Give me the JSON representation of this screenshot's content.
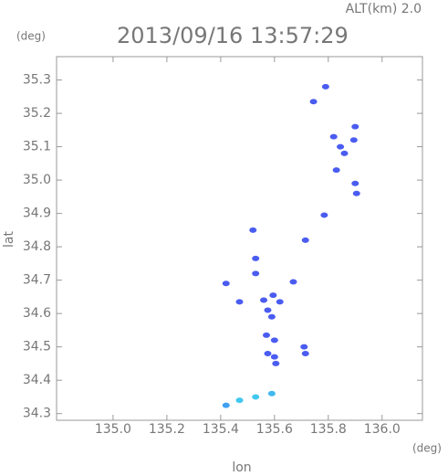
{
  "chart_data": {
    "type": "scatter",
    "title": "2013/09/16 13:57:29",
    "subtitle": "ALT(km) 2.0",
    "y_unit": "(deg)",
    "x_unit": "(deg)",
    "xlabel": "lon",
    "ylabel": "lat",
    "xlim": [
      134.79,
      136.15
    ],
    "ylim": [
      34.28,
      35.37
    ],
    "xticks": [
      {
        "value": 135,
        "label": "135.0"
      },
      135.2,
      135.4,
      135.6,
      135.8,
      {
        "value": 136,
        "label": "136.0"
      }
    ],
    "yticks": [
      34.3,
      34.4,
      34.5,
      34.6,
      34.7,
      34.8,
      34.9,
      {
        "value": 35,
        "label": "35.0"
      },
      35.1,
      35.2,
      35.3
    ],
    "x": [
      135.79,
      135.745,
      135.82,
      135.845,
      135.9,
      135.895,
      135.86,
      135.83,
      135.9,
      135.905,
      135.785,
      135.715,
      135.52,
      135.53,
      135.42,
      135.53,
      135.67,
      135.47,
      135.56,
      135.595,
      135.62,
      135.575,
      135.59,
      135.57,
      135.6,
      135.575,
      135.605,
      135.715,
      135.71,
      135.6,
      135.42,
      135.47,
      135.53,
      135.59
    ],
    "y": [
      35.28,
      35.235,
      35.13,
      35.1,
      35.16,
      35.12,
      35.08,
      35.03,
      34.99,
      34.96,
      34.895,
      34.82,
      34.85,
      34.765,
      34.69,
      34.72,
      34.695,
      34.635,
      34.64,
      34.655,
      34.635,
      34.61,
      34.59,
      34.535,
      34.52,
      34.48,
      34.45,
      34.48,
      34.5,
      34.47,
      34.325,
      34.34,
      34.35,
      34.36
    ],
    "colors": [
      "#4a5cf0",
      "#4a5cf0",
      "#4a5cf0",
      "#4a5cf0",
      "#4a5cf0",
      "#4a5cf0",
      "#4a5cf0",
      "#4a5cf0",
      "#4a5cf0",
      "#4a5cf0",
      "#4a5cf0",
      "#4a5cf0",
      "#4a5cf0",
      "#4a5cf0",
      "#4a5cf0",
      "#4a5cf0",
      "#4a5cf0",
      "#4a5cf0",
      "#4a5cf0",
      "#4a5cf0",
      "#4a5cf0",
      "#4a5cf0",
      "#4a5cf0",
      "#4a5cf0",
      "#4a5cf0",
      "#4a5cf0",
      "#4a5cf0",
      "#4a5cf0",
      "#4a5cf0",
      "#4a5cf0",
      "#40a0f0",
      "#40c8f0",
      "#40c8f0",
      "#40b8f0"
    ]
  }
}
